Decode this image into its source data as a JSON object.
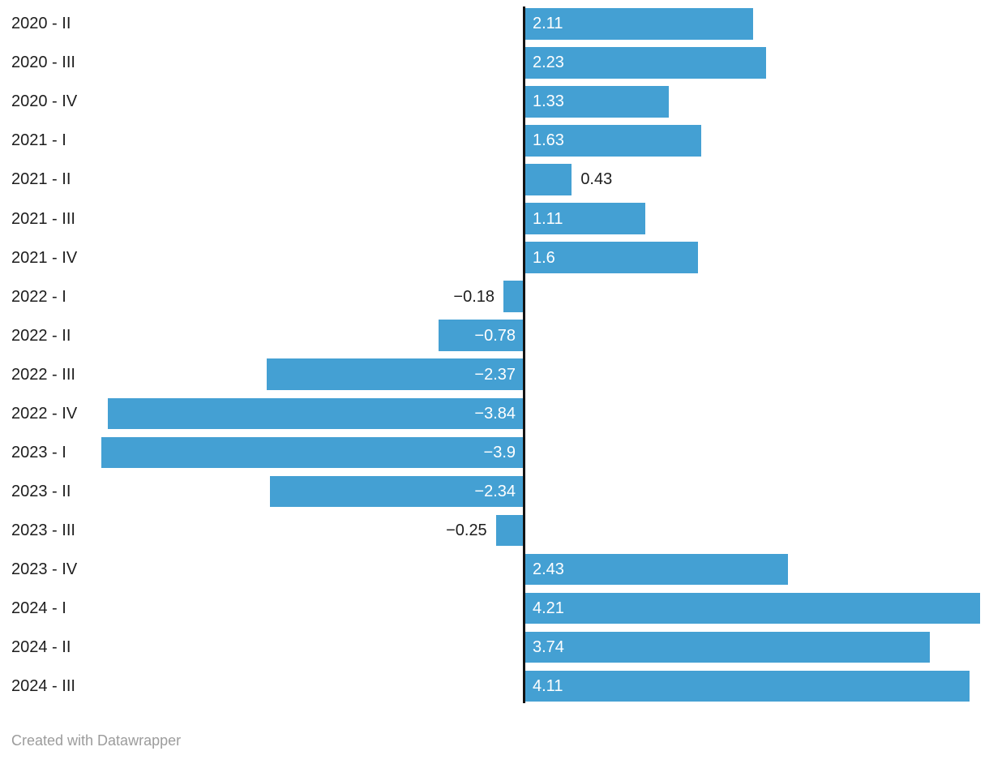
{
  "chart_data": {
    "type": "bar",
    "orientation": "horizontal",
    "title": "",
    "xlabel": "",
    "ylabel": "",
    "grid": false,
    "legend": "none",
    "xlim": [
      -4.85,
      4.3
    ],
    "categories": [
      "2020 - II",
      "2020 - III",
      "2020 - IV",
      "2021 - I",
      "2021 - II",
      "2021 - III",
      "2021 - IV",
      "2022 - I",
      "2022 - II",
      "2022 - III",
      "2022 - IV",
      "2023 - I",
      "2023 - II",
      "2023 - III",
      "2023 - IV",
      "2024 - I",
      "2024 - II",
      "2024 - III"
    ],
    "values": [
      2.11,
      2.23,
      1.33,
      1.63,
      0.43,
      1.11,
      1.6,
      -0.18,
      -0.78,
      -2.37,
      -3.84,
      -3.9,
      -2.34,
      -0.25,
      2.43,
      4.21,
      3.74,
      4.11
    ],
    "value_labels": [
      "2.11",
      "2.23",
      "1.33",
      "1.63",
      "0.43",
      "1.11",
      "1.6",
      "−0.18",
      "−0.78",
      "−2.37",
      "−3.84",
      "−3.9",
      "−2.34",
      "−0.25",
      "2.43",
      "4.21",
      "3.74",
      "4.11"
    ],
    "bar_color": "#44a0d3",
    "axis_color": "#131313",
    "category_label_color": "#1d1d1d",
    "inside_value_color": "#ffffff",
    "outside_value_color": "#1d1d1d"
  },
  "footer": {
    "credit": "Created with Datawrapper"
  }
}
